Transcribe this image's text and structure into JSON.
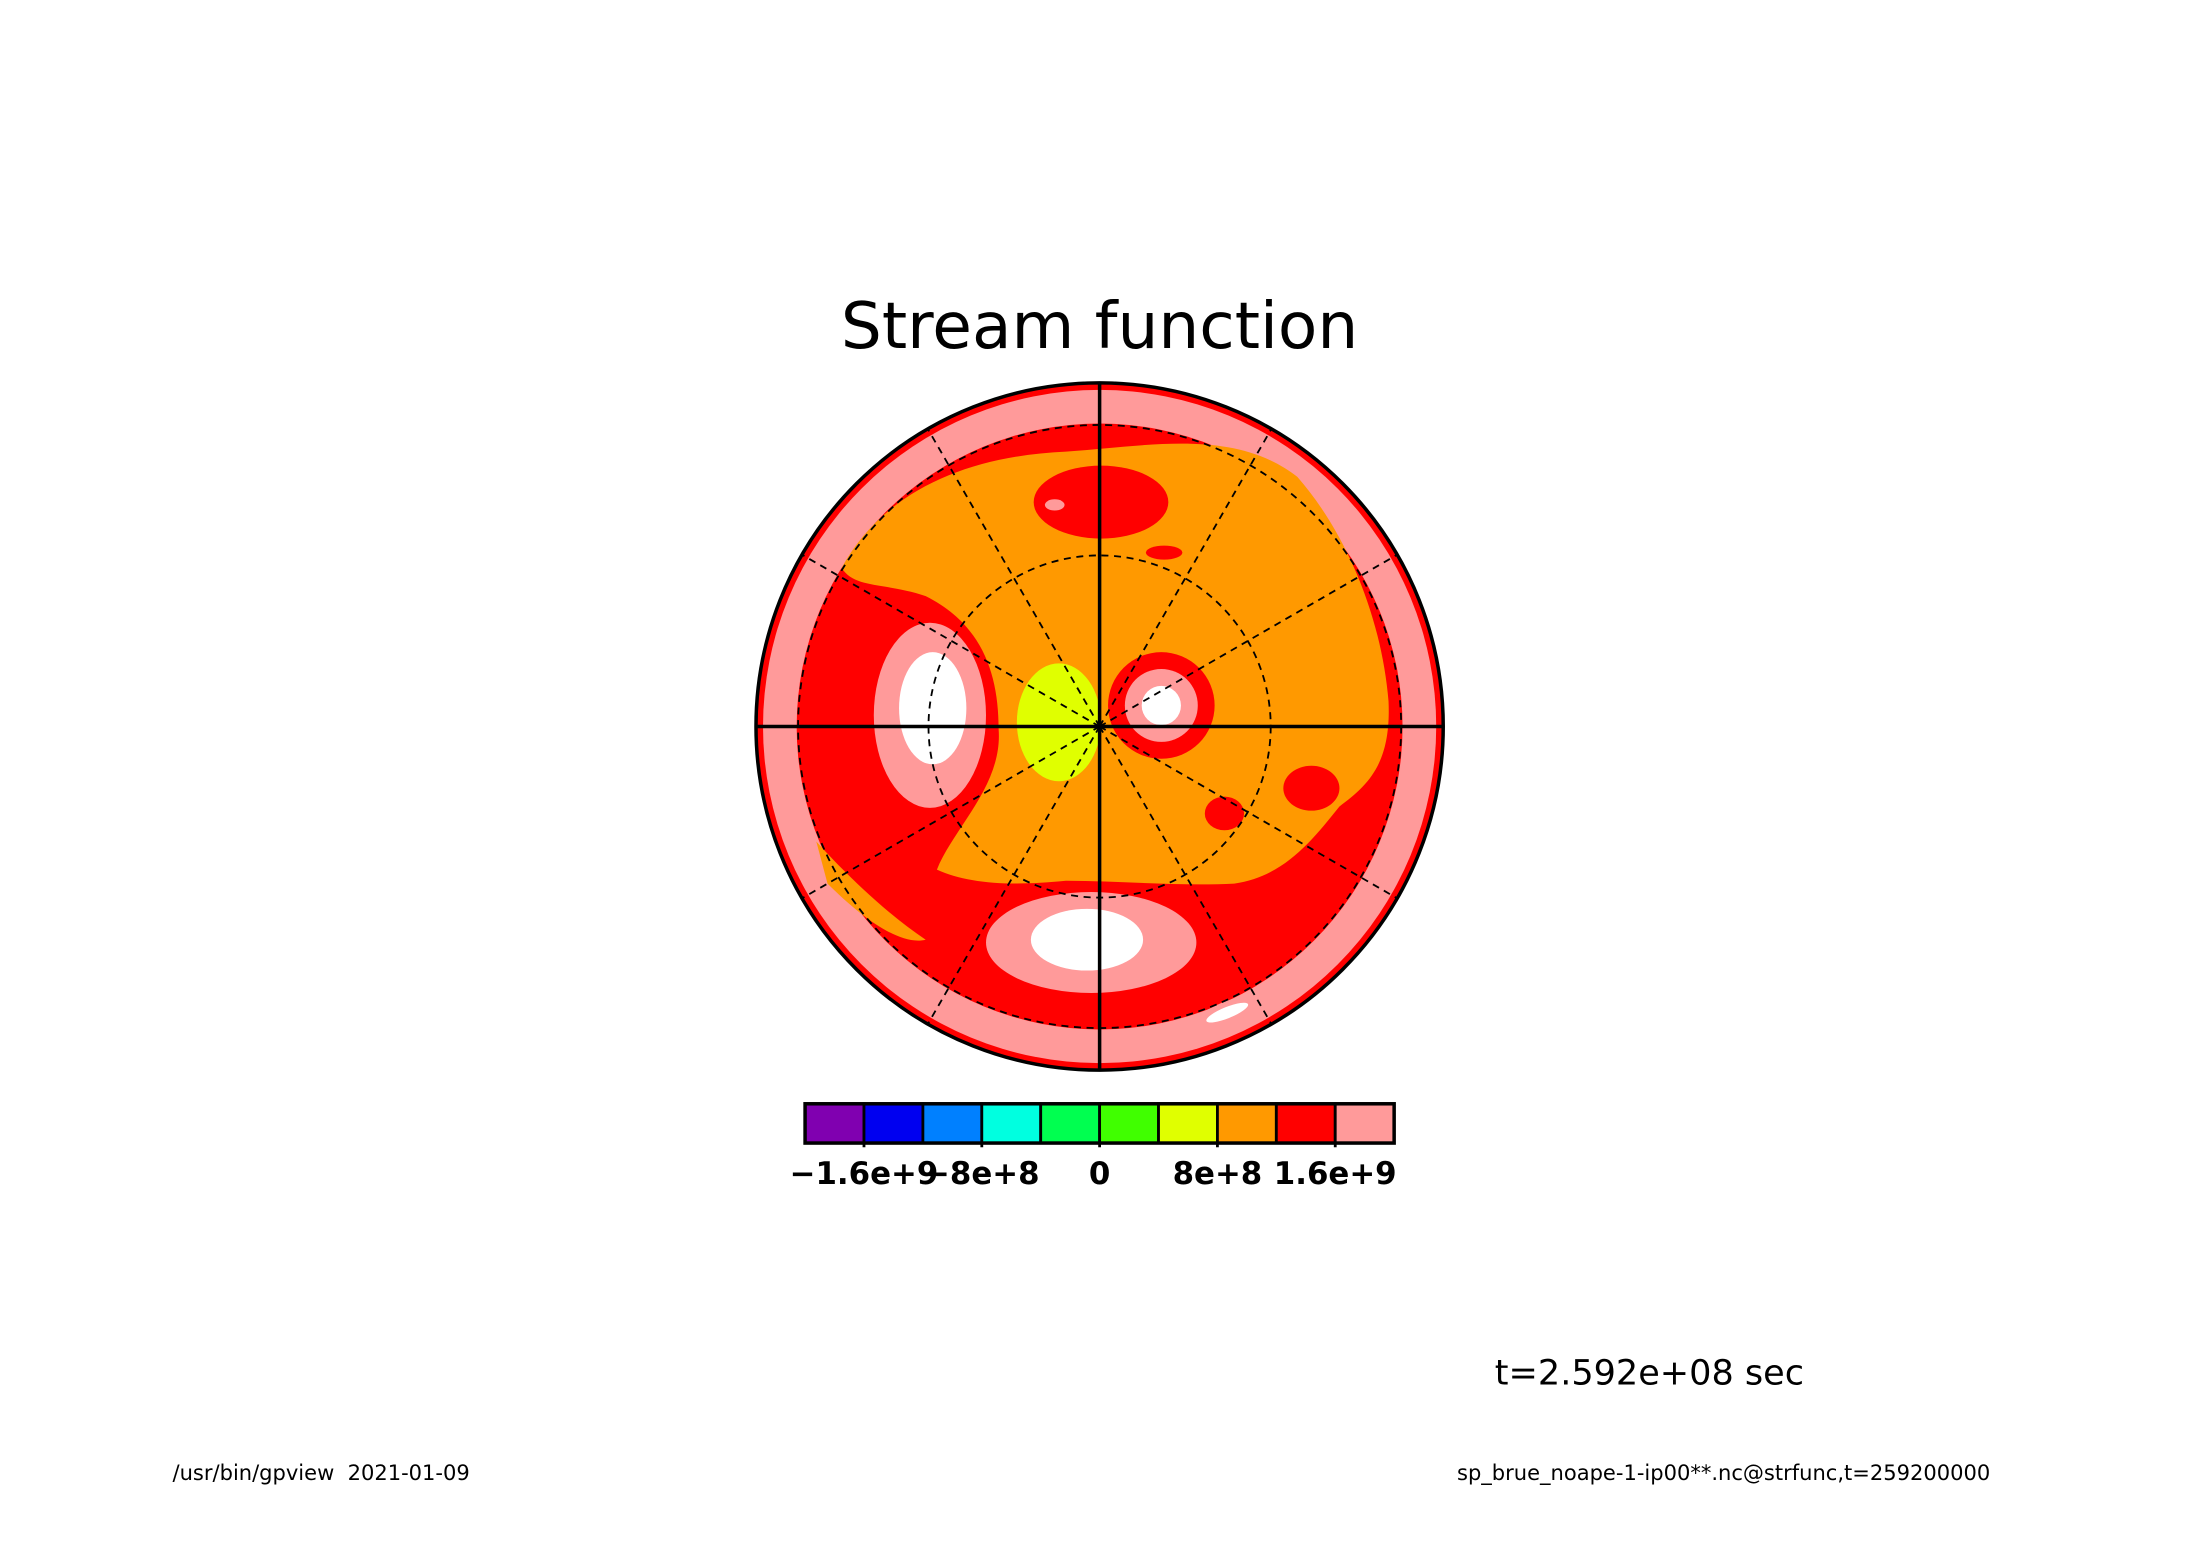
{
  "chart_data": {
    "type": "contour",
    "title": "Stream function",
    "colorbar": {
      "colors": [
        "#8000b0",
        "#0000f0",
        "#0080ff",
        "#00ffe0",
        "#00ff50",
        "#40ff00",
        "#e0ff00",
        "#ff9900",
        "#ff0000",
        "#ff9a9a"
      ],
      "lim": [
        -2000000000,
        2000000000
      ],
      "ticks": [
        {
          "value": -1600000000,
          "label": "−1.6e+9"
        },
        {
          "value": -800000000,
          "label": "−8e+8"
        },
        0,
        {
          "value": 800000000,
          "label": "8e+8"
        },
        {
          "value": 1600000000,
          "label": "1.6e+9"
        }
      ]
    },
    "annotation": "t=2.592e+08 sec",
    "footer_left": "/usr/bin/gpview  2021-01-09",
    "footer_right": "sp_brue_noape-1-ip00**.nc@strfunc,t=259200000"
  }
}
